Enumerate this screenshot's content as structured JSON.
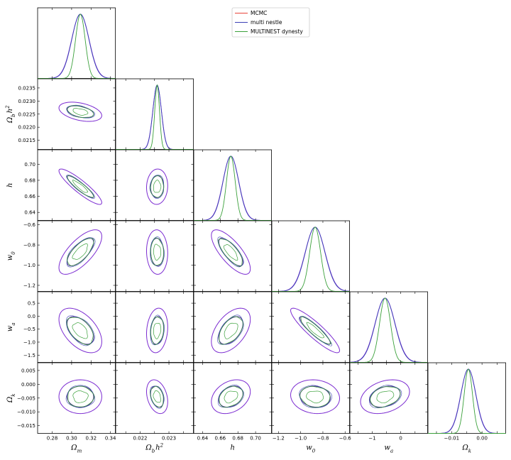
{
  "chart_data": {
    "type": "corner",
    "grid": false,
    "legend_placement": "top-center",
    "series": [
      {
        "name": "MCMC",
        "color": "#e8443a"
      },
      {
        "name": "multi nestle",
        "color": "#3b3fb5"
      },
      {
        "name": "MULTINEST dynesty",
        "color": "#3aa03a"
      }
    ],
    "contour_color": "#7b2bd1",
    "parameters": [
      {
        "key": "om",
        "label": "Ω_m",
        "range": [
          0.265,
          0.345
        ],
        "mean": 0.309,
        "sigma": 0.009,
        "ticks": [
          0.28,
          0.3,
          0.32,
          0.34
        ],
        "tick_labels": [
          "0.28",
          "0.30",
          "0.32",
          "0.34"
        ]
      },
      {
        "key": "obh2",
        "label": "Ω_b h^2",
        "range": [
          0.02115,
          0.02385
        ],
        "mean": 0.02259,
        "sigma": 0.00015,
        "ticks": [
          0.0215,
          0.022,
          0.0225,
          0.023,
          0.0235
        ],
        "tick_labels": [
          "0.0215",
          "0.0220",
          "0.0225",
          "0.0230",
          "0.0235"
        ],
        "bottom_ticks": [
          0.022,
          0.023
        ],
        "bottom_tick_labels": [
          "0.022",
          "0.023"
        ]
      },
      {
        "key": "h",
        "label": "h",
        "range": [
          0.63,
          0.718
        ],
        "mean": 0.672,
        "sigma": 0.009,
        "ticks": [
          0.64,
          0.66,
          0.68,
          0.7
        ],
        "tick_labels": [
          "0.64",
          "0.66",
          "0.68",
          "0.70"
        ]
      },
      {
        "key": "w0",
        "label": "w_0",
        "range": [
          -1.26,
          -0.56
        ],
        "mean": -0.87,
        "sigma": 0.09,
        "ticks": [
          -1.2,
          -1.0,
          -0.8,
          -0.6
        ],
        "tick_labels": [
          "−1.2",
          "−1.0",
          "−0.8",
          "−0.6"
        ]
      },
      {
        "key": "wa",
        "label": "w_a",
        "range": [
          -1.78,
          0.94
        ],
        "mean": -0.55,
        "sigma": 0.35,
        "ticks": [
          -1.5,
          -1.0,
          -0.5,
          0.0,
          0.5
        ],
        "tick_labels": [
          "−1.5",
          "−1.0",
          "−0.5",
          "0.0",
          "0.5"
        ],
        "bottom_ticks": [
          -1,
          0
        ],
        "bottom_tick_labels": [
          "−1",
          "0"
        ]
      },
      {
        "key": "ok",
        "label": "Ω_k",
        "range": [
          -0.0178,
          0.0078
        ],
        "mean": -0.0045,
        "sigma": 0.0025,
        "ticks": [
          -0.015,
          -0.01,
          -0.005,
          0.0,
          0.005
        ],
        "tick_labels": [
          "−0.015",
          "−0.010",
          "−0.005",
          "0.000",
          "0.005"
        ],
        "bottom_ticks": [
          -0.01,
          0.0
        ],
        "bottom_tick_labels": [
          "−0.01",
          "0.00"
        ]
      }
    ],
    "correlations": {
      "obh2|om": -0.4,
      "h|om": -0.9,
      "h|obh2": 0.05,
      "w0|om": 0.7,
      "w0|obh2": -0.05,
      "w0|h": -0.75,
      "wa|om": -0.5,
      "wa|obh2": 0.15,
      "wa|h": 0.5,
      "wa|w0": -0.9,
      "ok|om": 0.0,
      "ok|obh2": -0.3,
      "ok|h": 0.3,
      "ok|w0": -0.1,
      "ok|wa": 0.3
    }
  }
}
